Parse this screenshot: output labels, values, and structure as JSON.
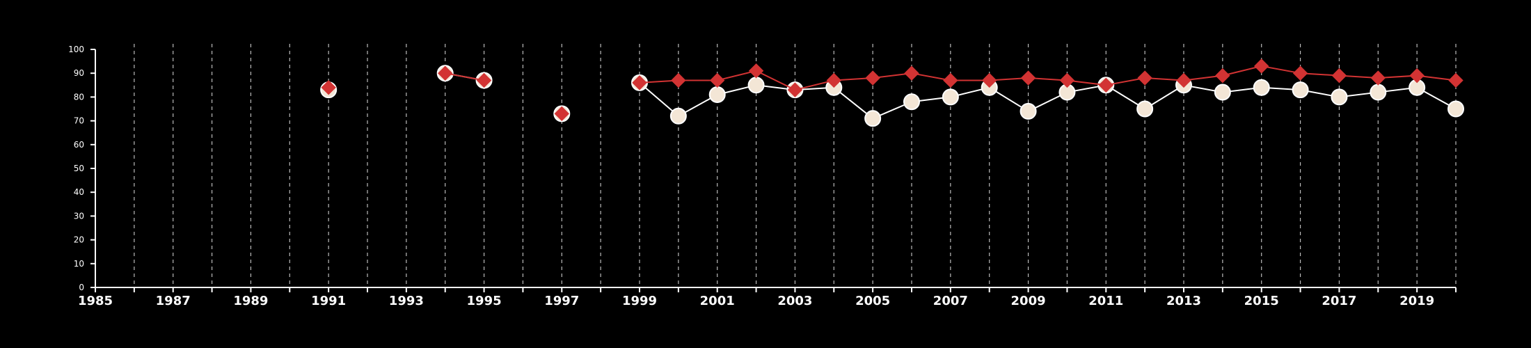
{
  "chart_data": {
    "type": "line",
    "title": "",
    "xlabel": "",
    "ylabel": "",
    "xlim": [
      1985,
      2020
    ],
    "ylim": [
      0,
      100
    ],
    "x_ticks": [
      1985,
      1987,
      1989,
      1991,
      1993,
      1995,
      1997,
      1999,
      2001,
      2003,
      2005,
      2007,
      2009,
      2011,
      2013,
      2015,
      2017,
      2019
    ],
    "y_ticks": [
      0,
      10,
      20,
      30,
      40,
      50,
      60,
      70,
      80,
      90,
      100
    ],
    "vertical_grid_years": [
      1986,
      1987,
      1988,
      1989,
      1990,
      1991,
      1992,
      1993,
      1994,
      1995,
      1996,
      1997,
      1998,
      1999,
      2000,
      2001,
      2002,
      2003,
      2004,
      2005,
      2006,
      2007,
      2008,
      2009,
      2010,
      2011,
      2012,
      2013,
      2014,
      2015,
      2016,
      2017,
      2018,
      2019,
      2020
    ],
    "grid": "vertical dashed",
    "legend": "none",
    "background": "#000000",
    "axis_color": "#ffffff",
    "grid_color": "#bbbbbb",
    "series": [
      {
        "marker": "circle",
        "color": "#ffffff",
        "fill": "#f3e6d6",
        "points": [
          [
            1991,
            83
          ],
          [
            1994,
            90
          ],
          [
            1995,
            87
          ],
          [
            1997,
            73
          ],
          [
            1999,
            86
          ],
          [
            2000,
            72
          ],
          [
            2001,
            81
          ],
          [
            2002,
            85
          ],
          [
            2003,
            83
          ],
          [
            2004,
            84
          ],
          [
            2005,
            71
          ],
          [
            2006,
            78
          ],
          [
            2007,
            80
          ],
          [
            2008,
            84
          ],
          [
            2009,
            74
          ],
          [
            2010,
            82
          ],
          [
            2011,
            85
          ],
          [
            2012,
            75
          ],
          [
            2013,
            85
          ],
          [
            2014,
            82
          ],
          [
            2015,
            84
          ],
          [
            2016,
            83
          ],
          [
            2017,
            80
          ],
          [
            2018,
            82
          ],
          [
            2019,
            84
          ],
          [
            2020,
            75
          ]
        ]
      },
      {
        "marker": "diamond",
        "color": "#d23333",
        "fill": "#d23333",
        "points": [
          [
            1991,
            84
          ],
          [
            1994,
            90
          ],
          [
            1995,
            87
          ],
          [
            1997,
            73
          ],
          [
            1999,
            86
          ],
          [
            2000,
            87
          ],
          [
            2001,
            87
          ],
          [
            2002,
            91
          ],
          [
            2003,
            83
          ],
          [
            2004,
            87
          ],
          [
            2005,
            88
          ],
          [
            2006,
            90
          ],
          [
            2007,
            87
          ],
          [
            2008,
            87
          ],
          [
            2009,
            88
          ],
          [
            2010,
            87
          ],
          [
            2011,
            85
          ],
          [
            2012,
            88
          ],
          [
            2013,
            87
          ],
          [
            2014,
            89
          ],
          [
            2015,
            93
          ],
          [
            2016,
            90
          ],
          [
            2017,
            89
          ],
          [
            2018,
            88
          ],
          [
            2019,
            89
          ],
          [
            2020,
            87
          ]
        ]
      }
    ]
  }
}
